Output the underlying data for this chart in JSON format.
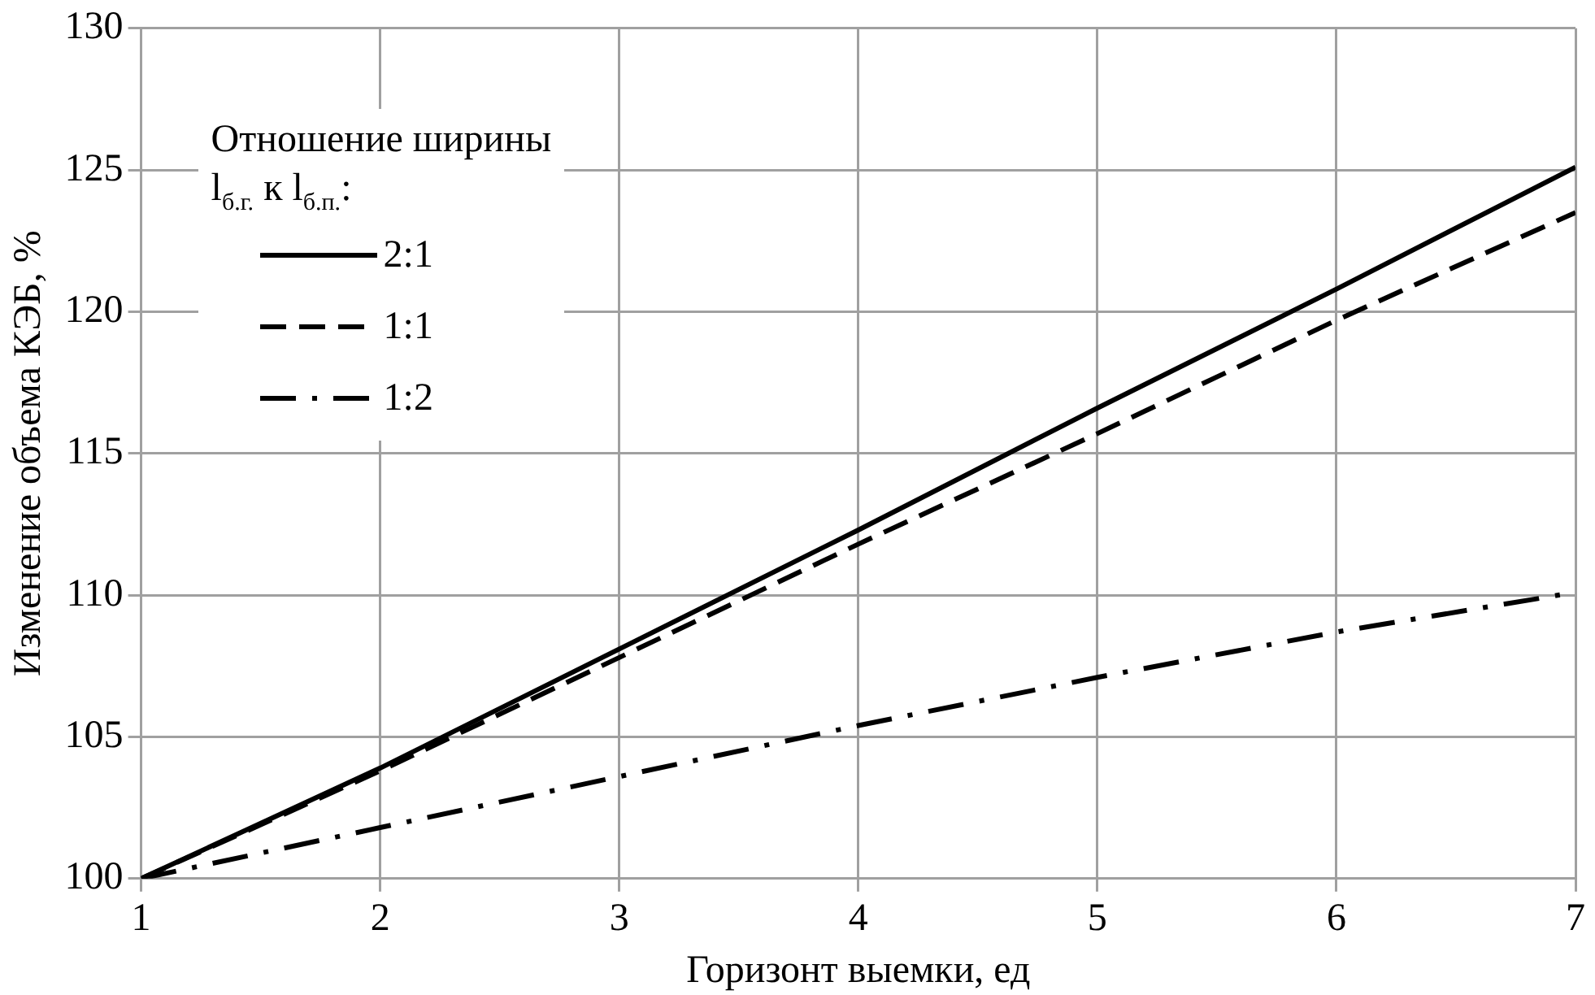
{
  "chart_data": {
    "type": "line",
    "xlabel": "Горизонт выемки, ед",
    "ylabel": "Изменение объема КЭБ, %",
    "legend_title": "Отношение ширины l$_{б.г.}$ к l$_{б.п.}$:",
    "x": [
      1,
      2,
      3,
      4,
      5,
      6,
      7
    ],
    "series": [
      {
        "name": "2:1",
        "color": "#000000",
        "line_style": "solid",
        "values": [
          100,
          103.9,
          108.1,
          112.3,
          116.6,
          120.8,
          125.1
        ]
      },
      {
        "name": "1:1",
        "color": "#000000",
        "line_style": "dashed",
        "values": [
          100,
          103.8,
          107.8,
          111.8,
          115.7,
          119.7,
          123.5
        ]
      },
      {
        "name": "1:2",
        "color": "#000000",
        "line_style": "dashdot",
        "values": [
          100,
          101.8,
          103.6,
          105.4,
          107.1,
          108.7,
          110.1
        ]
      }
    ],
    "xlim": [
      1,
      7
    ],
    "xticks": [
      1,
      2,
      3,
      4,
      5,
      6,
      7
    ],
    "ylim": [
      100,
      130
    ],
    "yticks": [
      100,
      105,
      110,
      115,
      120,
      125,
      130
    ],
    "grid": true,
    "legend": "top left",
    "marker": "none"
  }
}
